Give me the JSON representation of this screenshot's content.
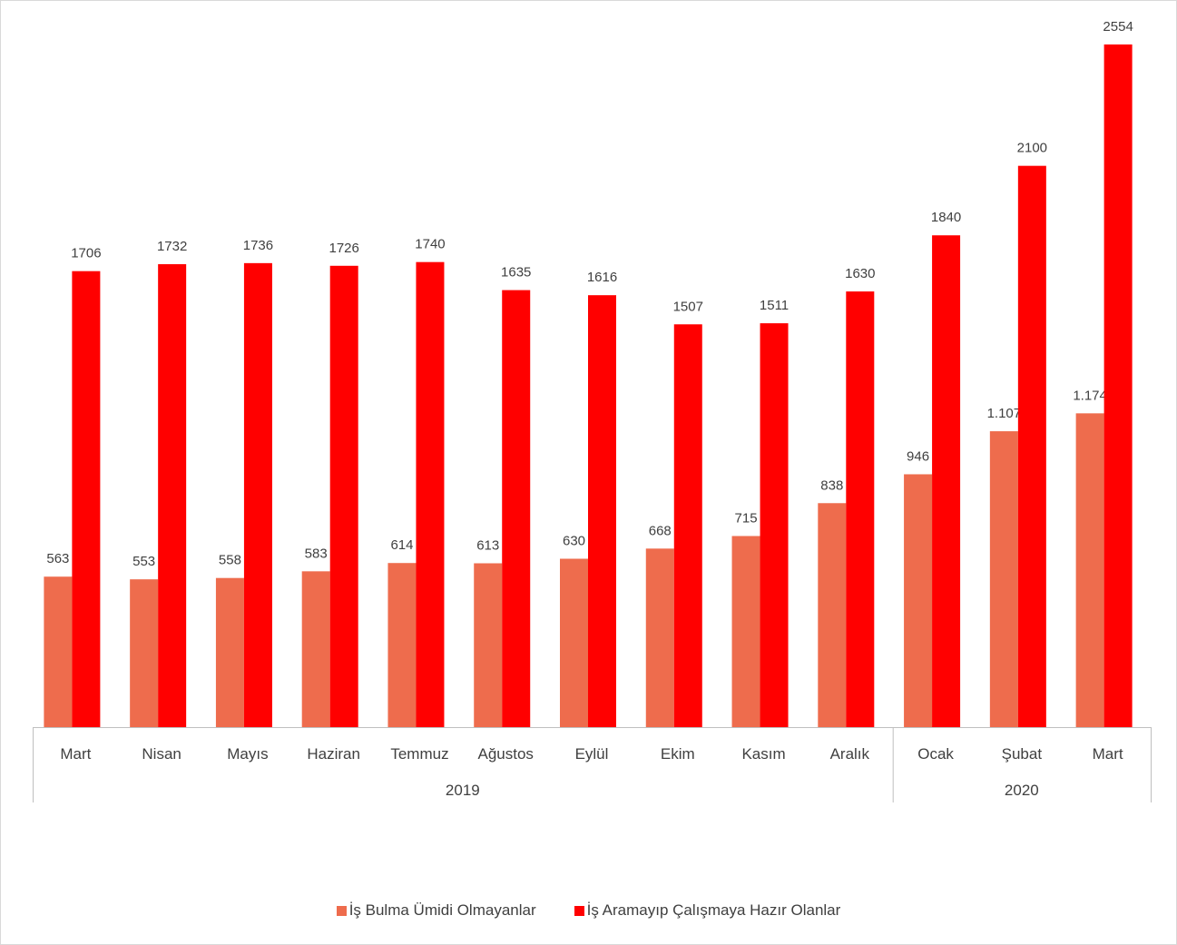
{
  "chart_data": {
    "type": "bar",
    "title": "",
    "xlabel": "",
    "ylabel": "",
    "ylim": [
      0,
      2554
    ],
    "grid": false,
    "legend_position": "bottom",
    "groups": [
      {
        "label": "2019",
        "categories": [
          "Mart",
          "Nisan",
          "Mayıs",
          "Haziran",
          "Temmuz",
          "Ağustos",
          "Eylül",
          "Ekim",
          "Kasım",
          "Aralık"
        ]
      },
      {
        "label": "2020",
        "categories": [
          "Ocak",
          "Şubat",
          "Mart"
        ]
      }
    ],
    "categories": [
      "Mart",
      "Nisan",
      "Mayıs",
      "Haziran",
      "Temmuz",
      "Ağustos",
      "Eylül",
      "Ekim",
      "Kasım",
      "Aralık",
      "Ocak",
      "Şubat",
      "Mart"
    ],
    "series": [
      {
        "name": "İş Bulma Ümidi Olmayanlar",
        "color": "#ee6c4d",
        "values": [
          563,
          553,
          558,
          583,
          614,
          613,
          630,
          668,
          715,
          838,
          946,
          1107,
          1174
        ],
        "labels": [
          "563",
          "553",
          "558",
          "583",
          "614",
          "613",
          "630",
          "668",
          "715",
          "838",
          "946",
          "1.107",
          "1.174"
        ]
      },
      {
        "name": "İş Aramayıp Çalışmaya Hazır Olanlar",
        "color": "#ff0000",
        "values": [
          1706,
          1732,
          1736,
          1726,
          1740,
          1635,
          1616,
          1507,
          1511,
          1630,
          1840,
          2100,
          2554
        ],
        "labels": [
          "1706",
          "1732",
          "1736",
          "1726",
          "1740",
          "1635",
          "1616",
          "1507",
          "1511",
          "1630",
          "1840",
          "2100",
          "2554"
        ]
      }
    ]
  },
  "legend": {
    "series1_label": "İş Bulma Ümidi Olmayanlar",
    "series2_label": "İş Aramayıp Çalışmaya Hazır Olanlar"
  }
}
